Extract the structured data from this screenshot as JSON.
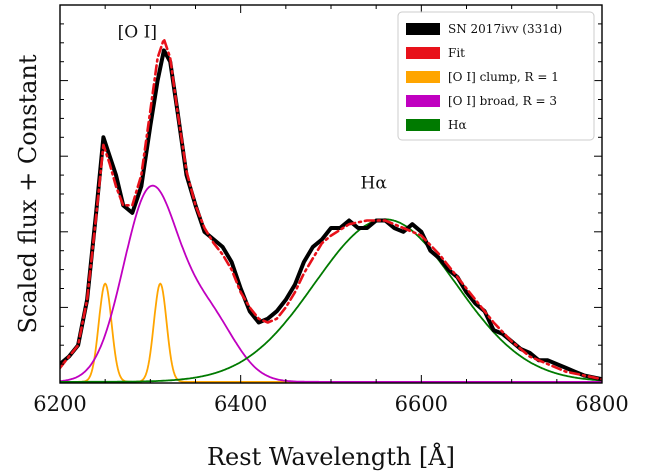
{
  "chart_data": {
    "type": "line",
    "title": "",
    "xlabel": "Rest Wavelength [Å]",
    "ylabel": "Scaled flux + Constant",
    "xlim": [
      6200,
      6800
    ],
    "ylim": [
      0,
      1.0
    ],
    "x_ticks": [
      6200,
      6400,
      6600,
      6800
    ],
    "x_tick_labels": [
      "6200",
      "6400",
      "6600",
      "6800"
    ],
    "y_tick_labels_shown": false,
    "grid": false,
    "legend_position": "top-right",
    "annotations": [
      {
        "text": "[O I]",
        "x": 6300,
        "y": 0.93
      },
      {
        "text": "Hα",
        "x": 6555,
        "y": 0.53
      }
    ],
    "series": [
      {
        "name": "SN 2017ivv (331d)",
        "color": "#000000",
        "style": "solid-thick",
        "x": [
          6200,
          6210,
          6220,
          6230,
          6240,
          6248,
          6255,
          6262,
          6270,
          6280,
          6290,
          6300,
          6308,
          6315,
          6322,
          6330,
          6340,
          6350,
          6360,
          6370,
          6380,
          6390,
          6400,
          6410,
          6420,
          6430,
          6440,
          6450,
          6460,
          6470,
          6480,
          6490,
          6500,
          6510,
          6520,
          6530,
          6540,
          6550,
          6560,
          6570,
          6580,
          6590,
          6600,
          6610,
          6620,
          6630,
          6640,
          6650,
          6660,
          6670,
          6680,
          6690,
          6700,
          6710,
          6720,
          6730,
          6740,
          6750,
          6760,
          6770,
          6780,
          6790,
          6800
        ],
        "y": [
          0.05,
          0.07,
          0.1,
          0.22,
          0.45,
          0.65,
          0.6,
          0.55,
          0.47,
          0.45,
          0.52,
          0.68,
          0.8,
          0.88,
          0.85,
          0.72,
          0.55,
          0.47,
          0.4,
          0.38,
          0.36,
          0.32,
          0.25,
          0.19,
          0.16,
          0.17,
          0.19,
          0.22,
          0.26,
          0.32,
          0.36,
          0.38,
          0.41,
          0.41,
          0.43,
          0.41,
          0.41,
          0.43,
          0.43,
          0.41,
          0.4,
          0.42,
          0.4,
          0.35,
          0.33,
          0.3,
          0.28,
          0.24,
          0.21,
          0.19,
          0.14,
          0.13,
          0.11,
          0.09,
          0.08,
          0.06,
          0.06,
          0.05,
          0.04,
          0.03,
          0.02,
          0.015,
          0.01
        ]
      },
      {
        "name": "Fit",
        "color": "#e8111a",
        "style": "dashdot",
        "x": [
          6200,
          6210,
          6220,
          6230,
          6240,
          6248,
          6255,
          6262,
          6270,
          6280,
          6290,
          6300,
          6308,
          6315,
          6322,
          6330,
          6340,
          6350,
          6360,
          6370,
          6380,
          6390,
          6400,
          6410,
          6420,
          6430,
          6440,
          6450,
          6460,
          6470,
          6480,
          6490,
          6500,
          6520,
          6540,
          6560,
          6580,
          6600,
          6620,
          6640,
          6660,
          6680,
          6700,
          6720,
          6740,
          6760,
          6780,
          6800
        ],
        "y": [
          0.04,
          0.07,
          0.1,
          0.22,
          0.44,
          0.63,
          0.58,
          0.52,
          0.47,
          0.47,
          0.55,
          0.72,
          0.86,
          0.91,
          0.86,
          0.72,
          0.56,
          0.47,
          0.41,
          0.37,
          0.34,
          0.3,
          0.24,
          0.2,
          0.17,
          0.16,
          0.17,
          0.2,
          0.24,
          0.29,
          0.33,
          0.37,
          0.39,
          0.42,
          0.43,
          0.43,
          0.41,
          0.39,
          0.34,
          0.28,
          0.22,
          0.16,
          0.11,
          0.07,
          0.05,
          0.03,
          0.02,
          0.01
        ]
      },
      {
        "name": "[O I] clump, R = 1",
        "color": "#ffa500",
        "style": "solid",
        "peaks": [
          {
            "center": 6250,
            "height": 0.26,
            "sigma": 7
          },
          {
            "center": 6311,
            "height": 0.26,
            "sigma": 7
          }
        ]
      },
      {
        "name": "[O I] broad, R = 3",
        "color": "#c000c0",
        "style": "solid",
        "peaks": [
          {
            "center": 6300,
            "height": 0.5,
            "sigma": 30
          },
          {
            "center": 6364,
            "height": 0.17,
            "sigma": 30
          }
        ]
      },
      {
        "name": "Hα",
        "color": "#007a00",
        "style": "solid",
        "peaks": [
          {
            "center": 6560,
            "height": 0.43,
            "sigma": 78
          }
        ]
      }
    ]
  }
}
